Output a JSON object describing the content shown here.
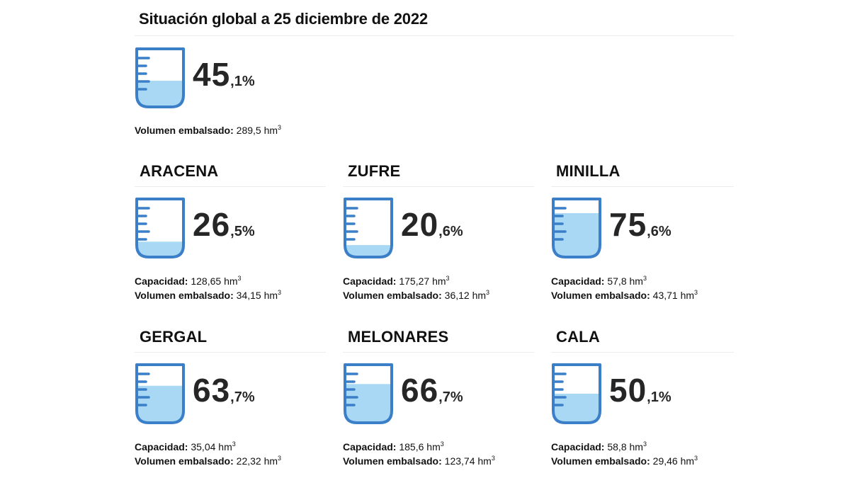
{
  "title": "Situación global a 25 diciembre de 2022",
  "colors": {
    "stroke": "#3b7fc8",
    "water": "#a9d8f4",
    "text": "#111111",
    "percent": "#262626"
  },
  "global": {
    "fill": 0.451,
    "percent_int": "45",
    "percent_dec": ",1%",
    "volume_label": "Volumen embalsado:",
    "volume_value": "289,5 hm",
    "unit_sup": "3"
  },
  "reservoirs": [
    {
      "name": "ARACENA",
      "fill": 0.265,
      "percent_int": "26",
      "percent_dec": ",5%",
      "capacity_label": "Capacidad:",
      "capacity_value": "128,65 hm",
      "volume_label": "Volumen embalsado:",
      "volume_value": "34,15 hm",
      "unit_sup": "3"
    },
    {
      "name": "ZUFRE",
      "fill": 0.206,
      "percent_int": "20",
      "percent_dec": ",6%",
      "capacity_label": "Capacidad:",
      "capacity_value": "175,27 hm",
      "volume_label": "Volumen embalsado:",
      "volume_value": "36,12 hm",
      "unit_sup": "3"
    },
    {
      "name": "MINILLA",
      "fill": 0.756,
      "percent_int": "75",
      "percent_dec": ",6%",
      "capacity_label": "Capacidad:",
      "capacity_value": "57,8 hm",
      "volume_label": "Volumen embalsado:",
      "volume_value": "43,71 hm",
      "unit_sup": "3"
    },
    {
      "name": "GERGAL",
      "fill": 0.637,
      "percent_int": "63",
      "percent_dec": ",7%",
      "capacity_label": "Capacidad:",
      "capacity_value": "35,04 hm",
      "volume_label": "Volumen embalsado:",
      "volume_value": "22,32 hm",
      "unit_sup": "3"
    },
    {
      "name": "MELONARES",
      "fill": 0.667,
      "percent_int": "66",
      "percent_dec": ",7%",
      "capacity_label": "Capacidad:",
      "capacity_value": "185,6 hm",
      "volume_label": "Volumen embalsado:",
      "volume_value": "123,74 hm",
      "unit_sup": "3"
    },
    {
      "name": "CALA",
      "fill": 0.501,
      "percent_int": "50",
      "percent_dec": ",1%",
      "capacity_label": "Capacidad:",
      "capacity_value": "58,8 hm",
      "volume_label": "Volumen embalsado:",
      "volume_value": "29,46 hm",
      "unit_sup": "3"
    }
  ]
}
